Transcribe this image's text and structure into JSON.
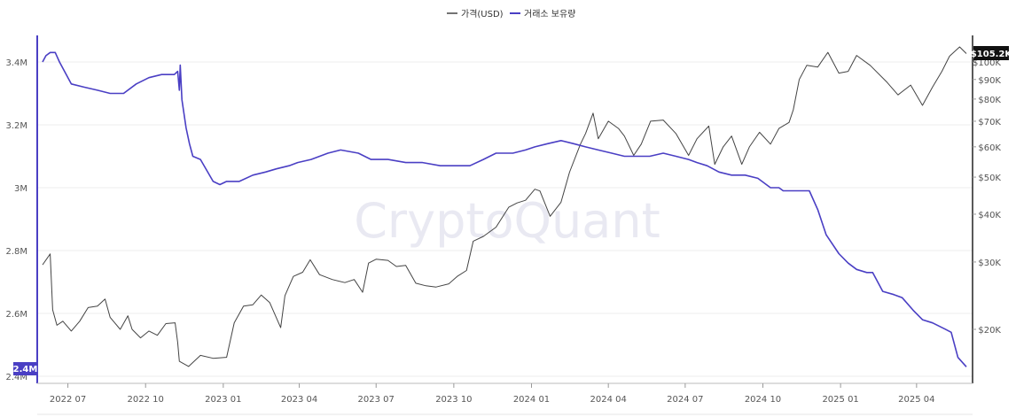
{
  "legend": {
    "price_label": "가격(USD)",
    "reserve_label": "거래소 보유량"
  },
  "watermark": "CryptoQuant",
  "colors": {
    "price": "#444444",
    "reserve": "#4a3fc4",
    "grid": "#ececec",
    "axis": "#222222",
    "price_badge_bg": "#111111",
    "reserve_badge_bg": "#4a3fc4"
  },
  "badges": {
    "price_current": "$105.2K",
    "reserve_current": "2.4M"
  },
  "chart_data": {
    "type": "line",
    "x_ticks": [
      "2022 07",
      "2022 10",
      "2023 01",
      "2023 04",
      "2023 07",
      "2023 10",
      "2024 01",
      "2024 04",
      "2024 07",
      "2024 10",
      "2025 01",
      "2025 04"
    ],
    "y_left": {
      "label": "",
      "ticks": [
        "3.4M",
        "3.2M",
        "3M",
        "2.8M",
        "2.6M",
        "2.4M"
      ],
      "range": [
        2.4,
        3.5
      ],
      "unit": "M"
    },
    "y_right": {
      "label": "",
      "scale": "log",
      "ticks": [
        "$100K",
        "$90K",
        "$80K",
        "$70K",
        "$60K",
        "$50K",
        "$40K",
        "$30K",
        "$20K"
      ],
      "tick_values": [
        100,
        90,
        80,
        70,
        60,
        50,
        40,
        30,
        20
      ],
      "range": [
        14.5,
        115
      ],
      "unit": "K USD"
    },
    "series": [
      {
        "name": "가격(USD)",
        "axis": "right",
        "x": [
          "2022-06-01",
          "2022-06-10",
          "2022-06-13",
          "2022-06-18",
          "2022-06-25",
          "2022-07-05",
          "2022-07-15",
          "2022-07-25",
          "2022-08-05",
          "2022-08-14",
          "2022-08-20",
          "2022-09-01",
          "2022-09-10",
          "2022-09-15",
          "2022-09-25",
          "2022-10-05",
          "2022-10-15",
          "2022-10-25",
          "2022-11-05",
          "2022-11-08",
          "2022-11-10",
          "2022-11-21",
          "2022-12-05",
          "2022-12-20",
          "2023-01-05",
          "2023-01-14",
          "2023-01-25",
          "2023-02-05",
          "2023-02-15",
          "2023-02-25",
          "2023-03-10",
          "2023-03-15",
          "2023-03-25",
          "2023-04-05",
          "2023-04-14",
          "2023-04-25",
          "2023-05-10",
          "2023-05-25",
          "2023-06-05",
          "2023-06-15",
          "2023-06-22",
          "2023-07-01",
          "2023-07-15",
          "2023-07-25",
          "2023-08-05",
          "2023-08-17",
          "2023-08-29",
          "2023-09-10",
          "2023-09-25",
          "2023-10-05",
          "2023-10-16",
          "2023-10-24",
          "2023-11-05",
          "2023-11-20",
          "2023-12-05",
          "2023-12-15",
          "2023-12-25",
          "2024-01-05",
          "2024-01-11",
          "2024-01-23",
          "2024-02-05",
          "2024-02-15",
          "2024-02-28",
          "2024-03-05",
          "2024-03-14",
          "2024-03-20",
          "2024-04-01",
          "2024-04-13",
          "2024-04-20",
          "2024-05-01",
          "2024-05-10",
          "2024-05-21",
          "2024-06-05",
          "2024-06-20",
          "2024-07-05",
          "2024-07-15",
          "2024-07-29",
          "2024-08-05",
          "2024-08-15",
          "2024-08-25",
          "2024-09-06",
          "2024-09-15",
          "2024-09-27",
          "2024-10-10",
          "2024-10-20",
          "2024-11-01",
          "2024-11-06",
          "2024-11-13",
          "2024-11-22",
          "2024-12-05",
          "2024-12-17",
          "2024-12-30",
          "2025-01-10",
          "2025-01-20",
          "2025-02-05",
          "2025-02-25",
          "2025-03-10",
          "2025-03-25",
          "2025-04-08",
          "2025-04-20",
          "2025-05-01",
          "2025-05-10",
          "2025-05-22",
          "2025-05-30"
        ],
        "values": [
          29.5,
          31.5,
          22.5,
          20.5,
          21.0,
          19.8,
          21.0,
          22.8,
          23.0,
          24.0,
          21.5,
          20.0,
          21.7,
          20.0,
          19.0,
          19.8,
          19.3,
          20.7,
          20.8,
          18.5,
          16.5,
          16.0,
          17.1,
          16.8,
          16.9,
          20.8,
          23.0,
          23.2,
          24.6,
          23.5,
          20.2,
          24.5,
          27.5,
          28.2,
          30.4,
          27.8,
          27.0,
          26.5,
          27.0,
          25.0,
          29.8,
          30.5,
          30.3,
          29.2,
          29.4,
          26.4,
          26.0,
          25.8,
          26.3,
          27.5,
          28.5,
          34.0,
          35.0,
          37.0,
          41.7,
          42.8,
          43.5,
          46.5,
          46.0,
          39.5,
          43.0,
          51.5,
          61.0,
          65.0,
          73.5,
          63.0,
          70.0,
          67.0,
          64.0,
          57.0,
          61.0,
          70.0,
          70.5,
          65.0,
          57.0,
          63.0,
          68.0,
          54.0,
          60.0,
          64.0,
          54.0,
          60.0,
          65.5,
          61.0,
          67.0,
          69.5,
          75.0,
          90.0,
          98.0,
          97.0,
          106.0,
          93.5,
          94.5,
          104.0,
          98.0,
          88.5,
          82.0,
          87.0,
          77.0,
          86.0,
          94.5,
          103.5,
          109.5,
          105.2
        ]
      },
      {
        "name": "거래소 보유량",
        "axis": "left",
        "x": [
          "2022-06-01",
          "2022-06-05",
          "2022-06-10",
          "2022-06-16",
          "2022-06-21",
          "2022-07-05",
          "2022-07-20",
          "2022-08-05",
          "2022-08-20",
          "2022-09-05",
          "2022-09-20",
          "2022-10-05",
          "2022-10-20",
          "2022-11-04",
          "2022-11-08",
          "2022-11-10",
          "2022-11-11",
          "2022-11-13",
          "2022-11-18",
          "2022-11-22",
          "2022-11-26",
          "2022-12-05",
          "2022-12-20",
          "2022-12-28",
          "2023-01-05",
          "2023-01-20",
          "2023-02-05",
          "2023-02-20",
          "2023-03-05",
          "2023-03-20",
          "2023-03-30",
          "2023-04-15",
          "2023-05-05",
          "2023-05-20",
          "2023-06-10",
          "2023-06-25",
          "2023-07-15",
          "2023-08-05",
          "2023-08-25",
          "2023-09-15",
          "2023-10-05",
          "2023-10-20",
          "2023-11-05",
          "2023-11-20",
          "2023-12-10",
          "2023-12-25",
          "2024-01-05",
          "2024-01-20",
          "2024-02-05",
          "2024-02-20",
          "2024-03-05",
          "2024-03-20",
          "2024-04-05",
          "2024-04-20",
          "2024-05-05",
          "2024-05-20",
          "2024-06-05",
          "2024-06-20",
          "2024-07-05",
          "2024-07-15",
          "2024-07-27",
          "2024-08-10",
          "2024-08-25",
          "2024-09-10",
          "2024-09-25",
          "2024-10-10",
          "2024-10-20",
          "2024-10-25",
          "2024-11-05",
          "2024-11-15",
          "2024-11-25",
          "2024-12-05",
          "2024-12-15",
          "2024-12-30",
          "2025-01-10",
          "2025-01-20",
          "2025-02-01",
          "2025-02-08",
          "2025-02-20",
          "2025-03-05",
          "2025-03-15",
          "2025-03-28",
          "2025-04-08",
          "2025-04-20",
          "2025-05-05",
          "2025-05-12",
          "2025-05-20",
          "2025-05-30"
        ],
        "values": [
          3.4,
          3.42,
          3.43,
          3.43,
          3.4,
          3.33,
          3.32,
          3.31,
          3.3,
          3.3,
          3.33,
          3.35,
          3.36,
          3.36,
          3.37,
          3.31,
          3.39,
          3.28,
          3.19,
          3.14,
          3.1,
          3.09,
          3.02,
          3.01,
          3.02,
          3.02,
          3.04,
          3.05,
          3.06,
          3.07,
          3.08,
          3.09,
          3.11,
          3.12,
          3.11,
          3.09,
          3.09,
          3.08,
          3.08,
          3.07,
          3.07,
          3.07,
          3.09,
          3.11,
          3.11,
          3.12,
          3.13,
          3.14,
          3.15,
          3.14,
          3.13,
          3.12,
          3.11,
          3.1,
          3.1,
          3.1,
          3.11,
          3.1,
          3.09,
          3.08,
          3.07,
          3.05,
          3.04,
          3.04,
          3.03,
          3.0,
          3.0,
          2.99,
          2.99,
          2.99,
          2.99,
          2.93,
          2.85,
          2.79,
          2.76,
          2.74,
          2.73,
          2.73,
          2.67,
          2.66,
          2.65,
          2.61,
          2.58,
          2.57,
          2.55,
          2.54,
          2.46,
          2.43
        ]
      }
    ],
    "grid": true,
    "legend_position": "top-center"
  }
}
